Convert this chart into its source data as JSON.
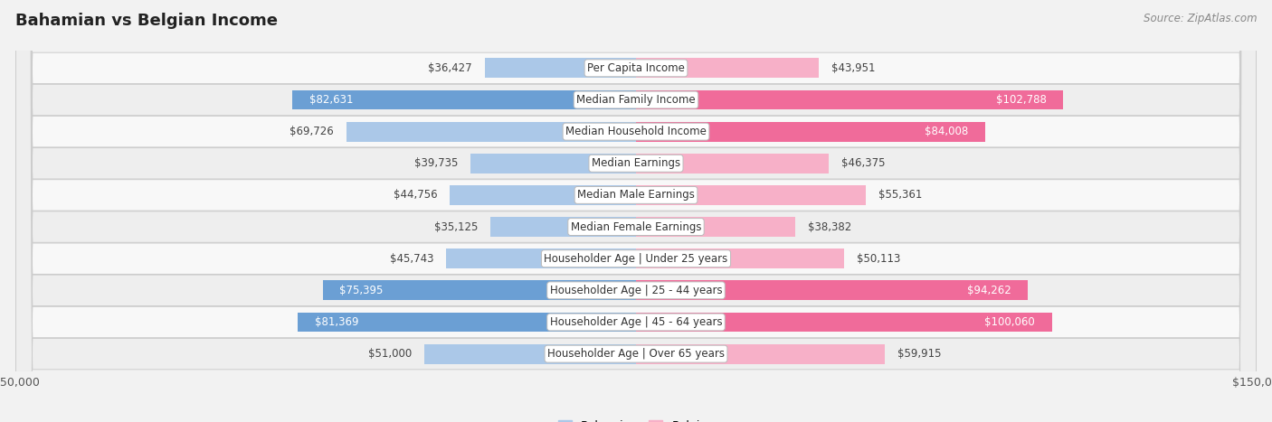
{
  "title": "Bahamian vs Belgian Income",
  "source": "Source: ZipAtlas.com",
  "categories": [
    "Per Capita Income",
    "Median Family Income",
    "Median Household Income",
    "Median Earnings",
    "Median Male Earnings",
    "Median Female Earnings",
    "Householder Age | Under 25 years",
    "Householder Age | 25 - 44 years",
    "Householder Age | 45 - 64 years",
    "Householder Age | Over 65 years"
  ],
  "bahamian_values": [
    36427,
    82631,
    69726,
    39735,
    44756,
    35125,
    45743,
    75395,
    81369,
    51000
  ],
  "belgian_values": [
    43951,
    102788,
    84008,
    46375,
    55361,
    38382,
    50113,
    94262,
    100060,
    59915
  ],
  "bahamian_color_light": "#abc8e8",
  "bahamian_color_dark": "#6b9fd4",
  "belgian_color_light": "#f7b0c8",
  "belgian_color_dark": "#f06b9a",
  "bar_height": 0.62,
  "xlim": 150000,
  "bg_color": "#f2f2f2",
  "row_bg_even": "#f8f8f8",
  "row_bg_odd": "#eeeeee",
  "label_fontsize": 8.5,
  "title_fontsize": 13,
  "bah_white_thresh": 75000,
  "bel_white_thresh": 80000
}
